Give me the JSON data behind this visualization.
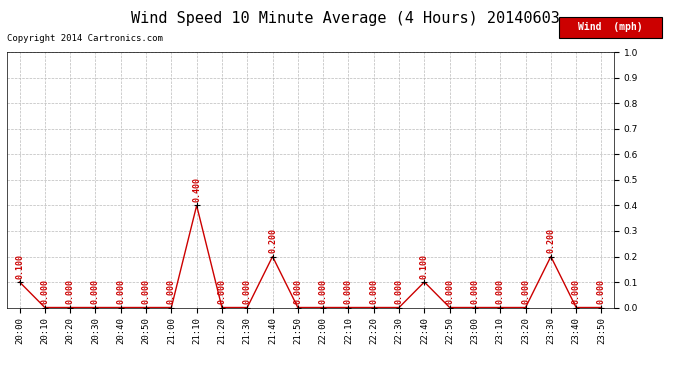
{
  "title": "Wind Speed 10 Minute Average (4 Hours) 20140603",
  "copyright": "Copyright 2014 Cartronics.com",
  "legend_label": "Wind  (mph)",
  "x_labels": [
    "20:00",
    "20:10",
    "20:20",
    "20:30",
    "20:40",
    "20:50",
    "21:00",
    "21:10",
    "21:20",
    "21:30",
    "21:40",
    "21:50",
    "22:00",
    "22:10",
    "22:20",
    "22:30",
    "22:40",
    "22:50",
    "23:00",
    "23:10",
    "23:20",
    "23:30",
    "23:40",
    "23:50"
  ],
  "y_values": [
    0.1,
    0.0,
    0.0,
    0.0,
    0.0,
    0.0,
    0.0,
    0.4,
    0.0,
    0.0,
    0.2,
    0.0,
    0.0,
    0.0,
    0.0,
    0.0,
    0.1,
    0.0,
    0.0,
    0.0,
    0.0,
    0.2,
    0.0,
    0.0
  ],
  "line_color": "#cc0000",
  "marker_color": "#000000",
  "bg_color": "#ffffff",
  "grid_color": "#bbbbbb",
  "ylim": [
    0.0,
    1.0
  ],
  "yticks": [
    0.0,
    0.1,
    0.2,
    0.3,
    0.4,
    0.5,
    0.6,
    0.7,
    0.8,
    0.9,
    1.0
  ],
  "title_fontsize": 11,
  "label_fontsize": 6.5,
  "annotation_fontsize": 6,
  "legend_box_color": "#cc0000",
  "legend_text_color": "#ffffff"
}
